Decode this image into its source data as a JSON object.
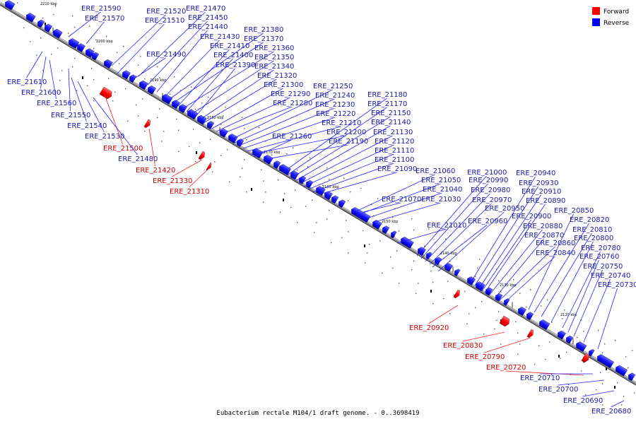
{
  "caption": "Eubacterium rectale M104/1 draft genome. - 0..3698419",
  "legend": {
    "forward_label": "Forward",
    "reverse_label": "Reverse",
    "forward_color": "#ff0000",
    "reverse_color": "#0000ff"
  },
  "colors": {
    "reverse_label": "#1a1aa6",
    "forward_label": "#cc0000"
  },
  "ticks": [
    "2210 kbp",
    "2200 kbp",
    "2190 kbp",
    "2180 kbp",
    "2170 kbp",
    "2160 kbp",
    "2150 kbp",
    "2140 kbp",
    "2130 kbp",
    "2120 kbp"
  ],
  "genes": [
    {
      "name": "ERE_21590",
      "strand": "reverse"
    },
    {
      "name": "ERE_21570",
      "strand": "reverse"
    },
    {
      "name": "ERE_21520",
      "strand": "reverse"
    },
    {
      "name": "ERE_21510",
      "strand": "reverse"
    },
    {
      "name": "ERE_21470",
      "strand": "reverse"
    },
    {
      "name": "ERE_21450",
      "strand": "reverse"
    },
    {
      "name": "ERE_21440",
      "strand": "reverse"
    },
    {
      "name": "ERE_21430",
      "strand": "reverse"
    },
    {
      "name": "ERE_21380",
      "strand": "reverse"
    },
    {
      "name": "ERE_21370",
      "strand": "reverse"
    },
    {
      "name": "ERE_21410",
      "strand": "reverse"
    },
    {
      "name": "ERE_21360",
      "strand": "reverse"
    },
    {
      "name": "ERE_21490",
      "strand": "reverse"
    },
    {
      "name": "ERE_21400",
      "strand": "reverse"
    },
    {
      "name": "ERE_21350",
      "strand": "reverse"
    },
    {
      "name": "ERE_21390",
      "strand": "reverse"
    },
    {
      "name": "ERE_21340",
      "strand": "reverse"
    },
    {
      "name": "ERE_21320",
      "strand": "reverse"
    },
    {
      "name": "ERE_21300",
      "strand": "reverse"
    },
    {
      "name": "ERE_21290",
      "strand": "reverse"
    },
    {
      "name": "ERE_21280",
      "strand": "reverse"
    },
    {
      "name": "ERE_21250",
      "strand": "reverse"
    },
    {
      "name": "ERE_21240",
      "strand": "reverse"
    },
    {
      "name": "ERE_21230",
      "strand": "reverse"
    },
    {
      "name": "ERE_21220",
      "strand": "reverse"
    },
    {
      "name": "ERE_21210",
      "strand": "reverse"
    },
    {
      "name": "ERE_21200",
      "strand": "reverse"
    },
    {
      "name": "ERE_21190",
      "strand": "reverse"
    },
    {
      "name": "ERE_21260",
      "strand": "reverse"
    },
    {
      "name": "ERE_21180",
      "strand": "reverse"
    },
    {
      "name": "ERE_21170",
      "strand": "reverse"
    },
    {
      "name": "ERE_21150",
      "strand": "reverse"
    },
    {
      "name": "ERE_21140",
      "strand": "reverse"
    },
    {
      "name": "ERE_21130",
      "strand": "reverse"
    },
    {
      "name": "ERE_21120",
      "strand": "reverse"
    },
    {
      "name": "ERE_21110",
      "strand": "reverse"
    },
    {
      "name": "ERE_21100",
      "strand": "reverse"
    },
    {
      "name": "ERE_21090",
      "strand": "reverse"
    },
    {
      "name": "ERE_21060",
      "strand": "reverse"
    },
    {
      "name": "ERE_21050",
      "strand": "reverse"
    },
    {
      "name": "ERE_21040",
      "strand": "reverse"
    },
    {
      "name": "ERE_21030",
      "strand": "reverse"
    },
    {
      "name": "ERE_21070",
      "strand": "reverse"
    },
    {
      "name": "ERE_21010",
      "strand": "reverse"
    },
    {
      "name": "ERE_21000",
      "strand": "reverse"
    },
    {
      "name": "ERE_20990",
      "strand": "reverse"
    },
    {
      "name": "ERE_20980",
      "strand": "reverse"
    },
    {
      "name": "ERE_20970",
      "strand": "reverse"
    },
    {
      "name": "ERE_20960",
      "strand": "reverse"
    },
    {
      "name": "ERE_20950",
      "strand": "reverse"
    },
    {
      "name": "ERE_20940",
      "strand": "reverse"
    },
    {
      "name": "ERE_20930",
      "strand": "reverse"
    },
    {
      "name": "ERE_20910",
      "strand": "reverse"
    },
    {
      "name": "ERE_20890",
      "strand": "reverse"
    },
    {
      "name": "ERE_20900",
      "strand": "reverse"
    },
    {
      "name": "ERE_20880",
      "strand": "reverse"
    },
    {
      "name": "ERE_20870",
      "strand": "reverse"
    },
    {
      "name": "ERE_20860",
      "strand": "reverse"
    },
    {
      "name": "ERE_20840",
      "strand": "reverse"
    },
    {
      "name": "ERE_20850",
      "strand": "reverse"
    },
    {
      "name": "ERE_20820",
      "strand": "reverse"
    },
    {
      "name": "ERE_20810",
      "strand": "reverse"
    },
    {
      "name": "ERE_20800",
      "strand": "reverse"
    },
    {
      "name": "ERE_20780",
      "strand": "reverse"
    },
    {
      "name": "ERE_20760",
      "strand": "reverse"
    },
    {
      "name": "ERE_20750",
      "strand": "reverse"
    },
    {
      "name": "ERE_20740",
      "strand": "reverse"
    },
    {
      "name": "ERE_20730",
      "strand": "reverse"
    },
    {
      "name": "ERE_21610",
      "strand": "reverse"
    },
    {
      "name": "ERE_21600",
      "strand": "reverse"
    },
    {
      "name": "ERE_21560",
      "strand": "reverse"
    },
    {
      "name": "ERE_21550",
      "strand": "reverse"
    },
    {
      "name": "ERE_21540",
      "strand": "reverse"
    },
    {
      "name": "ERE_21530",
      "strand": "reverse"
    },
    {
      "name": "ERE_21500",
      "strand": "forward"
    },
    {
      "name": "ERE_21480",
      "strand": "reverse"
    },
    {
      "name": "ERE_21420",
      "strand": "forward"
    },
    {
      "name": "ERE_21330",
      "strand": "forward"
    },
    {
      "name": "ERE_21310",
      "strand": "forward"
    },
    {
      "name": "ERE_20920",
      "strand": "forward"
    },
    {
      "name": "ERE_20830",
      "strand": "forward"
    },
    {
      "name": "ERE_20790",
      "strand": "forward"
    },
    {
      "name": "ERE_20720",
      "strand": "forward"
    },
    {
      "name": "ERE_20710",
      "strand": "reverse"
    },
    {
      "name": "ERE_20700",
      "strand": "reverse"
    },
    {
      "name": "ERE_20690",
      "strand": "reverse"
    },
    {
      "name": "ERE_20680",
      "strand": "reverse"
    }
  ]
}
